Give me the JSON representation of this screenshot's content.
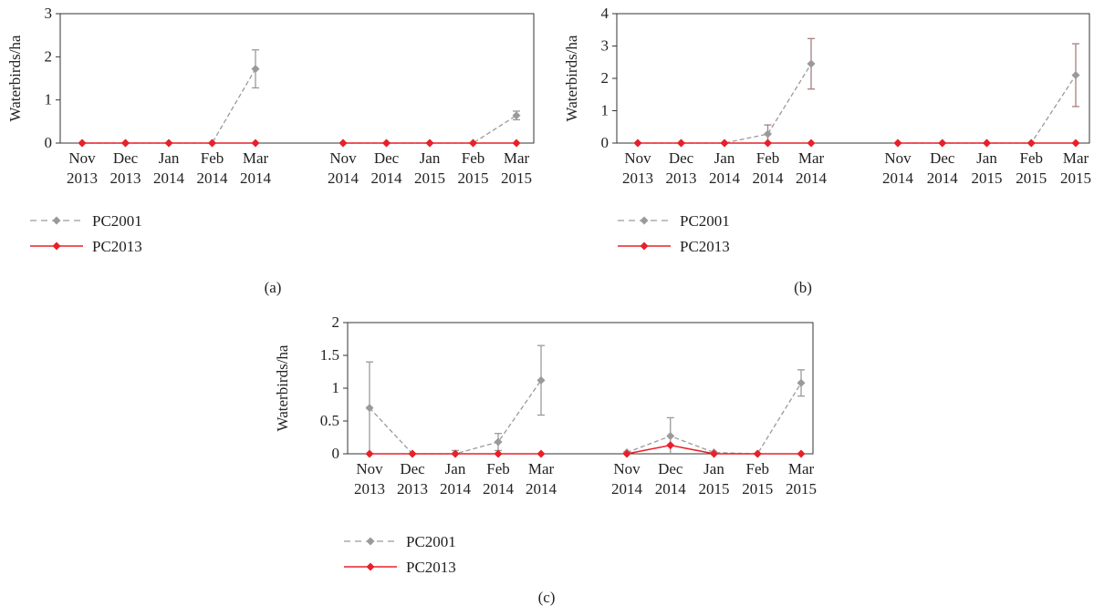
{
  "charts": [
    {
      "caption": "(a)",
      "chart_data": {
        "type": "line",
        "ylabel": "Waterbirds/ha",
        "ylim": [
          0,
          3
        ],
        "yticks": [
          0,
          1,
          2,
          3
        ],
        "ytick_labels": [
          "0",
          "1",
          "2",
          "3"
        ],
        "groups": [
          {
            "categories": [
              [
                "Nov",
                "2013"
              ],
              [
                "Dec",
                "2013"
              ],
              [
                "Jan",
                "2014"
              ],
              [
                "Feb",
                "2014"
              ],
              [
                "Mar",
                "2014"
              ]
            ]
          },
          {
            "categories": [
              [
                "Nov",
                "2014"
              ],
              [
                "Dec",
                "2014"
              ],
              [
                "Jan",
                "2015"
              ],
              [
                "Feb",
                "2015"
              ],
              [
                "Mar",
                "2015"
              ]
            ]
          }
        ],
        "series": [
          {
            "name": "PC2001",
            "color": "#9a9a9a",
            "style": "dashed",
            "values": [
              [
                0,
                0,
                0,
                0,
                1.72
              ],
              [
                0,
                0,
                0,
                0,
                0.64
              ]
            ],
            "errors": [
              [
                null,
                null,
                null,
                null,
                0.44
              ],
              [
                null,
                null,
                null,
                null,
                0.1
              ]
            ]
          },
          {
            "name": "PC2013",
            "color": "#e8202a",
            "style": "solid",
            "values": [
              [
                0,
                0,
                0,
                0,
                0
              ],
              [
                0,
                0,
                0,
                0,
                0
              ]
            ],
            "errors": [
              [
                null,
                null,
                null,
                null,
                null
              ],
              [
                null,
                null,
                null,
                null,
                null
              ]
            ]
          }
        ],
        "legend": "bottom-left"
      }
    },
    {
      "caption": "(b)",
      "chart_data": {
        "type": "line",
        "ylabel": "Waterbirds/ha",
        "ylim": [
          0,
          4
        ],
        "yticks": [
          0,
          1,
          2,
          3,
          4
        ],
        "ytick_labels": [
          "0",
          "1",
          "2",
          "3",
          "4"
        ],
        "groups": [
          {
            "categories": [
              [
                "Nov",
                "2013"
              ],
              [
                "Dec",
                "2013"
              ],
              [
                "Jan",
                "2014"
              ],
              [
                "Feb",
                "2014"
              ],
              [
                "Mar",
                "2014"
              ]
            ]
          },
          {
            "categories": [
              [
                "Nov",
                "2014"
              ],
              [
                "Dec",
                "2014"
              ],
              [
                "Jan",
                "2015"
              ],
              [
                "Feb",
                "2015"
              ],
              [
                "Mar",
                "2015"
              ]
            ]
          }
        ],
        "series": [
          {
            "name": "PC2001",
            "color": "#9a9a9a",
            "style": "dashed",
            "values": [
              [
                0,
                0,
                0,
                0.28,
                2.45
              ],
              [
                0,
                0,
                0,
                0,
                2.1
              ]
            ],
            "errors": [
              [
                null,
                null,
                null,
                0.28,
                0.78
              ],
              [
                null,
                null,
                null,
                null,
                0.97
              ]
            ]
          },
          {
            "name": "PC2013",
            "color": "#e8202a",
            "style": "solid",
            "values": [
              [
                0,
                0,
                0,
                0,
                0
              ],
              [
                0,
                0,
                0,
                0,
                0
              ]
            ],
            "errors": [
              [
                null,
                null,
                null,
                null,
                null
              ],
              [
                null,
                null,
                null,
                null,
                null
              ]
            ]
          }
        ],
        "legend": "bottom-left"
      }
    },
    {
      "caption": "(c)",
      "chart_data": {
        "type": "line",
        "ylabel": "Waterbirds/ha",
        "ylim": [
          0,
          2
        ],
        "yticks": [
          0,
          0.5,
          1,
          1.5,
          2
        ],
        "ytick_labels": [
          "0",
          "0.5",
          "1",
          "1.5",
          "2"
        ],
        "groups": [
          {
            "categories": [
              [
                "Nov",
                "2013"
              ],
              [
                "Dec",
                "2013"
              ],
              [
                "Jan",
                "2014"
              ],
              [
                "Feb",
                "2014"
              ],
              [
                "Mar",
                "2014"
              ]
            ]
          },
          {
            "categories": [
              [
                "Nov",
                "2014"
              ],
              [
                "Dec",
                "2014"
              ],
              [
                "Jan",
                "2015"
              ],
              [
                "Feb",
                "2015"
              ],
              [
                "Mar",
                "2015"
              ]
            ]
          }
        ],
        "series": [
          {
            "name": "PC2001",
            "color": "#9a9a9a",
            "style": "dashed",
            "values": [
              [
                0.7,
                0,
                0,
                0.18,
                1.12
              ],
              [
                0.02,
                0.27,
                0.02,
                0,
                1.08
              ]
            ],
            "errors": [
              [
                0.7,
                null,
                0.05,
                0.13,
                0.53
              ],
              [
                null,
                0.28,
                null,
                null,
                0.2
              ]
            ]
          },
          {
            "name": "PC2013",
            "color": "#e8202a",
            "style": "solid",
            "values": [
              [
                0,
                0,
                0,
                0,
                0
              ],
              [
                0,
                0.13,
                0,
                0,
                0
              ]
            ],
            "errors": [
              [
                null,
                null,
                null,
                null,
                null
              ],
              [
                null,
                null,
                null,
                null,
                null
              ]
            ]
          }
        ],
        "legend": "bottom-left"
      }
    }
  ]
}
